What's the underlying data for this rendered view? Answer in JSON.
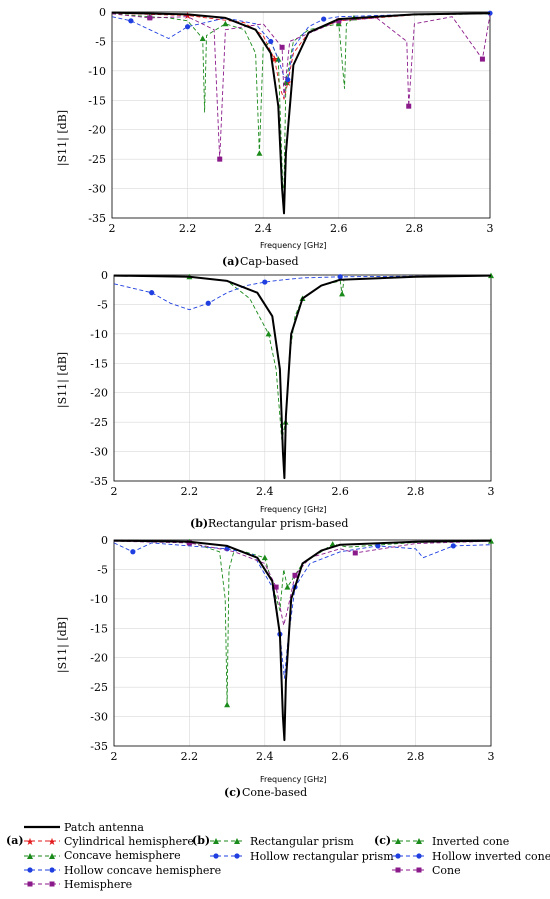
{
  "colors": {
    "patch": "#000000",
    "cylindrical": "#e31a1c",
    "green": "#1a8a1a",
    "blue": "#1f3fe0",
    "purple": "#8b1a8b"
  },
  "chart_data": [
    {
      "type": "line",
      "caption_label": "(a)",
      "caption": "Cap-based",
      "xlabel": "Frequency [GHz]",
      "ylabel": "|S11| [dB]",
      "xlim": [
        2,
        3
      ],
      "ylim": [
        -35,
        0
      ],
      "xticks": [
        "2",
        "2.2",
        "2.4",
        "2.6",
        "2.8",
        "3"
      ],
      "yticks": [
        "0",
        "-5",
        "-10",
        "-15",
        "-20",
        "-25",
        "-30",
        "-35"
      ],
      "grid": true,
      "series": [
        {
          "name": "Patch antenna",
          "color": "#000000",
          "style": "solid",
          "marker": "none",
          "x": [
            2.0,
            2.2,
            2.3,
            2.38,
            2.42,
            2.44,
            2.45,
            2.455,
            2.46,
            2.48,
            2.52,
            2.6,
            2.8,
            3.0
          ],
          "y": [
            -0.1,
            -0.4,
            -1.0,
            -3.0,
            -7.0,
            -16.0,
            -30.0,
            -34.2,
            -24.0,
            -9.0,
            -3.5,
            -1.2,
            -0.4,
            -0.2
          ]
        },
        {
          "name": "Cylindrical hemisphere",
          "color": "#e31a1c",
          "style": "dashed",
          "marker": "star",
          "x": [
            2.0,
            2.2,
            2.35,
            2.4,
            2.43,
            2.445,
            2.455,
            2.465,
            2.48,
            2.52,
            2.6,
            2.8,
            3.0
          ],
          "y": [
            -0.2,
            -0.6,
            -1.8,
            -4.0,
            -8.0,
            -13.0,
            -14.8,
            -12.0,
            -7.0,
            -3.5,
            -1.5,
            -0.5,
            -0.2
          ]
        },
        {
          "name": "Concave hemisphere",
          "color": "#1a8a1a",
          "style": "dashed",
          "marker": "triangle",
          "x": [
            2.0,
            2.1,
            2.15,
            2.2,
            2.24,
            2.245,
            2.25,
            2.3,
            2.35,
            2.38,
            2.39,
            2.4,
            2.42,
            2.44,
            2.452,
            2.455,
            2.46,
            2.48,
            2.52,
            2.6,
            2.615,
            2.62,
            2.64,
            2.8,
            3.0
          ],
          "y": [
            -0.3,
            -0.8,
            -1.0,
            -1.5,
            -4.5,
            -17.0,
            -4.0,
            -2.0,
            -3.0,
            -7.0,
            -24.0,
            -6.0,
            -5.0,
            -8.0,
            -30.0,
            -29.5,
            -12.0,
            -5.0,
            -3.0,
            -2.0,
            -13.0,
            -2.0,
            -1.0,
            -0.5,
            -0.3
          ]
        },
        {
          "name": "Hollow concave hemisphere",
          "color": "#1f3fe0",
          "style": "dashed",
          "marker": "circle",
          "x": [
            2.0,
            2.05,
            2.1,
            2.15,
            2.2,
            2.3,
            2.38,
            2.42,
            2.44,
            2.455,
            2.465,
            2.48,
            2.52,
            2.56,
            2.6,
            2.8,
            3.0
          ],
          "y": [
            -0.8,
            -1.5,
            -3.0,
            -4.5,
            -2.5,
            -1.0,
            -2.0,
            -5.0,
            -8.0,
            -11.0,
            -11.5,
            -6.0,
            -2.5,
            -1.2,
            -0.8,
            -0.4,
            -0.2
          ]
        },
        {
          "name": "Hemisphere",
          "color": "#8b1a8b",
          "style": "dashed",
          "marker": "square",
          "x": [
            2.0,
            2.1,
            2.2,
            2.27,
            2.285,
            2.3,
            2.4,
            2.45,
            2.455,
            2.47,
            2.6,
            2.7,
            2.78,
            2.785,
            2.8,
            2.9,
            2.98,
            3.0
          ],
          "y": [
            -0.3,
            -1.0,
            -0.8,
            -3.0,
            -25.0,
            -3.0,
            -2.0,
            -6.0,
            -14.5,
            -5.0,
            -1.5,
            -1.0,
            -5.0,
            -16.0,
            -2.0,
            -0.8,
            -8.0,
            -0.5
          ]
        }
      ]
    },
    {
      "type": "line",
      "caption_label": "(b)",
      "caption": "Rectangular prism-based",
      "xlabel": "Frequency [GHz]",
      "ylabel": "|S11| [dB]",
      "xlim": [
        2,
        3
      ],
      "ylim": [
        -35,
        0
      ],
      "xticks": [
        "2",
        "2.2",
        "2.4",
        "2.6",
        "2.8",
        "3"
      ],
      "yticks": [
        "0",
        "-5",
        "-10",
        "-15",
        "-20",
        "-25",
        "-30",
        "-35"
      ],
      "grid": true,
      "series": [
        {
          "name": "Patch antenna",
          "color": "#000000",
          "style": "solid",
          "marker": "none",
          "x": [
            2.0,
            2.2,
            2.3,
            2.38,
            2.42,
            2.44,
            2.448,
            2.452,
            2.456,
            2.47,
            2.5,
            2.55,
            2.6,
            2.8,
            3.0
          ],
          "y": [
            -0.1,
            -0.3,
            -1.0,
            -3.0,
            -7.0,
            -16.0,
            -30.0,
            -34.5,
            -24.0,
            -10.0,
            -4.0,
            -1.8,
            -0.8,
            -0.3,
            -0.1
          ]
        },
        {
          "name": "Rectangular prism",
          "color": "#1a8a1a",
          "style": "dashed",
          "marker": "triangle",
          "x": [
            2.0,
            2.2,
            2.3,
            2.36,
            2.41,
            2.43,
            2.445,
            2.455,
            2.465,
            2.48,
            2.5,
            2.55,
            2.6,
            2.605,
            2.61,
            2.8,
            3.0
          ],
          "y": [
            -0.1,
            -0.3,
            -1.0,
            -4.0,
            -10.0,
            -16.0,
            -28.0,
            -25.0,
            -14.0,
            -7.0,
            -4.0,
            -1.8,
            -1.0,
            -3.2,
            -0.8,
            -0.3,
            -0.1
          ]
        },
        {
          "name": "Hollow rectangular prism",
          "color": "#1f3fe0",
          "style": "dashed",
          "marker": "circle",
          "x": [
            2.0,
            2.1,
            2.15,
            2.2,
            2.25,
            2.3,
            2.35,
            2.4,
            2.45,
            2.5,
            2.6,
            2.8,
            3.0
          ],
          "y": [
            -1.5,
            -3.0,
            -4.8,
            -5.9,
            -4.8,
            -3.0,
            -1.8,
            -1.2,
            -0.8,
            -0.5,
            -0.3,
            -0.2,
            -0.1
          ]
        }
      ]
    },
    {
      "type": "line",
      "caption_label": "(c)",
      "caption": "Cone-based",
      "xlabel": "Frequency [GHz]",
      "ylabel": "|S11| [dB]",
      "xlim": [
        2,
        3
      ],
      "ylim": [
        -35,
        0
      ],
      "xticks": [
        "2",
        "2.2",
        "2.4",
        "2.6",
        "2.8",
        "3"
      ],
      "yticks": [
        "0",
        "-5",
        "-10",
        "-15",
        "-20",
        "-25",
        "-30",
        "-35"
      ],
      "grid": true,
      "series": [
        {
          "name": "Patch antenna",
          "color": "#000000",
          "style": "solid",
          "marker": "none",
          "x": [
            2.0,
            2.2,
            2.3,
            2.38,
            2.42,
            2.44,
            2.448,
            2.452,
            2.456,
            2.47,
            2.5,
            2.55,
            2.6,
            2.8,
            3.0
          ],
          "y": [
            -0.1,
            -0.3,
            -1.0,
            -3.0,
            -7.0,
            -16.0,
            -30.0,
            -34.0,
            -24.0,
            -10.0,
            -4.0,
            -1.8,
            -0.8,
            -0.3,
            -0.1
          ]
        },
        {
          "name": "Inverted cone",
          "color": "#1a8a1a",
          "style": "dashed",
          "marker": "triangle",
          "x": [
            2.0,
            2.2,
            2.28,
            2.295,
            2.3,
            2.305,
            2.32,
            2.4,
            2.44,
            2.45,
            2.46,
            2.5,
            2.55,
            2.58,
            2.62,
            2.8,
            3.0
          ],
          "y": [
            -0.1,
            -0.3,
            -2.0,
            -10.0,
            -28.0,
            -5.0,
            -1.5,
            -3.0,
            -12.0,
            -5.0,
            -8.0,
            -4.0,
            -2.0,
            -0.7,
            -1.2,
            -0.4,
            -0.2
          ]
        },
        {
          "name": "Hollow inverted cone",
          "color": "#1f3fe0",
          "style": "dashed",
          "marker": "circle",
          "x": [
            2.0,
            2.05,
            2.1,
            2.2,
            2.3,
            2.37,
            2.42,
            2.44,
            2.452,
            2.46,
            2.48,
            2.52,
            2.6,
            2.7,
            2.8,
            2.82,
            2.9,
            3.0
          ],
          "y": [
            -0.5,
            -2.0,
            -0.5,
            -1.0,
            -1.5,
            -2.5,
            -8.0,
            -16.0,
            -23.5,
            -18.0,
            -8.0,
            -4.0,
            -2.0,
            -1.0,
            -1.5,
            -3.0,
            -1.0,
            -0.8
          ]
        },
        {
          "name": "Cone",
          "color": "#8b1a8b",
          "style": "dashed",
          "marker": "square",
          "x": [
            2.0,
            2.2,
            2.32,
            2.4,
            2.43,
            2.45,
            2.46,
            2.48,
            2.52,
            2.6,
            2.64,
            2.8,
            3.0
          ],
          "y": [
            -0.2,
            -0.5,
            -2.0,
            -4.0,
            -8.0,
            -14.5,
            -12.0,
            -6.0,
            -3.0,
            -1.5,
            -2.2,
            -0.6,
            -0.2
          ]
        }
      ]
    }
  ],
  "legend": {
    "patch": "Patch antenna",
    "group_a_label": "(a)",
    "group_a": [
      "Cylindrical hemisphere",
      "Concave hemisphere",
      "Hollow concave hemisphere",
      "Hemisphere"
    ],
    "group_b_label": "(b)",
    "group_b": [
      "Rectangular prism",
      "Hollow rectangular prism"
    ],
    "group_c_label": "(c)",
    "group_c": [
      "Inverted cone",
      "Hollow inverted cone",
      "Cone"
    ]
  }
}
